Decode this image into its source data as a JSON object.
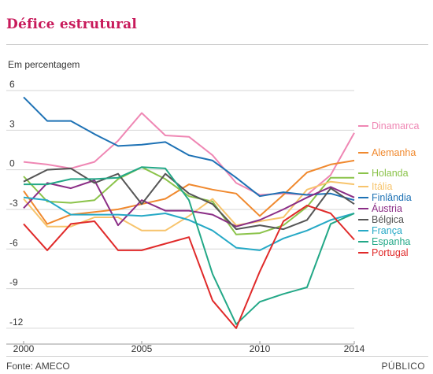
{
  "title": "Défice estrutural",
  "footer": {
    "source": "Fonte: AMECO",
    "publisher": "PÚBLICO"
  },
  "chart_data": {
    "type": "line",
    "ylabel": "Em percentagem",
    "x": [
      2000,
      2001,
      2002,
      2003,
      2004,
      2005,
      2006,
      2007,
      2008,
      2009,
      2010,
      2011,
      2012,
      2013,
      2014
    ],
    "xticks": [
      2000,
      2005,
      2010,
      2014
    ],
    "yticks": [
      6,
      3,
      0,
      -3,
      -6,
      -9,
      -12
    ],
    "ylim": [
      -13.2,
      6
    ],
    "grid": true,
    "legend_position": "right",
    "series": [
      {
        "name": "Dinamarca",
        "color": "#ef87b4",
        "values": [
          0.6,
          0.4,
          0.1,
          0.6,
          2.2,
          4.3,
          2.6,
          2.5,
          1.1,
          -1.0,
          -1.9,
          -1.8,
          -1.9,
          -0.4,
          2.8
        ]
      },
      {
        "name": "Alemanha",
        "color": "#f0892e",
        "values": [
          -1.6,
          -4.1,
          -3.4,
          -3.2,
          -3.0,
          -2.6,
          -2.2,
          -1.1,
          -1.5,
          -1.8,
          -3.5,
          -1.9,
          -0.2,
          0.4,
          0.7
        ]
      },
      {
        "name": "Holanda",
        "color": "#8bc34a",
        "values": [
          -0.5,
          -2.4,
          -2.5,
          -2.3,
          -0.7,
          0.2,
          -0.7,
          -2.0,
          -2.4,
          -4.9,
          -4.8,
          -4.2,
          -2.8,
          -0.6,
          -0.6
        ]
      },
      {
        "name": "Itália",
        "color": "#f7c46c",
        "values": [
          -2.2,
          -4.3,
          -4.3,
          -3.6,
          -3.6,
          -4.6,
          -4.6,
          -3.5,
          -2.2,
          -4.2,
          -3.9,
          -3.6,
          -1.5,
          -0.9,
          -1.1
        ]
      },
      {
        "name": "Finlândia",
        "color": "#1e72b5",
        "values": [
          5.5,
          3.7,
          3.7,
          2.7,
          1.8,
          1.9,
          2.1,
          1.1,
          0.7,
          -0.6,
          -2.0,
          -1.7,
          -1.9,
          -1.8,
          -2.3
        ]
      },
      {
        "name": "Áustria",
        "color": "#8b2e86",
        "values": [
          -2.9,
          -1.0,
          -1.4,
          -0.8,
          -4.2,
          -2.3,
          -3.1,
          -3.1,
          -3.4,
          -4.3,
          -3.8,
          -3.0,
          -2.1,
          -1.3,
          -2.1
        ]
      },
      {
        "name": "Bélgica",
        "color": "#555555",
        "values": [
          -0.9,
          0.0,
          0.1,
          -1.0,
          -0.3,
          -2.6,
          -0.3,
          -1.8,
          -2.6,
          -4.5,
          -4.2,
          -4.5,
          -3.8,
          -1.4,
          -2.6
        ]
      },
      {
        "name": "França",
        "color": "#26a9c6",
        "values": [
          -2.1,
          -2.3,
          -3.4,
          -3.4,
          -3.4,
          -3.5,
          -3.3,
          -3.8,
          -4.6,
          -5.9,
          -6.1,
          -5.2,
          -4.6,
          -3.8,
          -3.3
        ]
      },
      {
        "name": "Espanha",
        "color": "#23a887",
        "values": [
          -1.1,
          -1.1,
          -0.7,
          -0.7,
          -0.6,
          0.2,
          0.1,
          -2.3,
          -7.9,
          -11.7,
          -10.0,
          -9.4,
          -8.9,
          -4.1,
          -3.3
        ]
      },
      {
        "name": "Portugal",
        "color": "#e02a2a",
        "values": [
          -4.1,
          -6.1,
          -4.1,
          -3.9,
          -6.1,
          -6.1,
          -5.6,
          -5.1,
          -9.9,
          -12.0,
          -7.7,
          -3.9,
          -2.7,
          -3.3,
          -5.3
        ]
      }
    ]
  }
}
